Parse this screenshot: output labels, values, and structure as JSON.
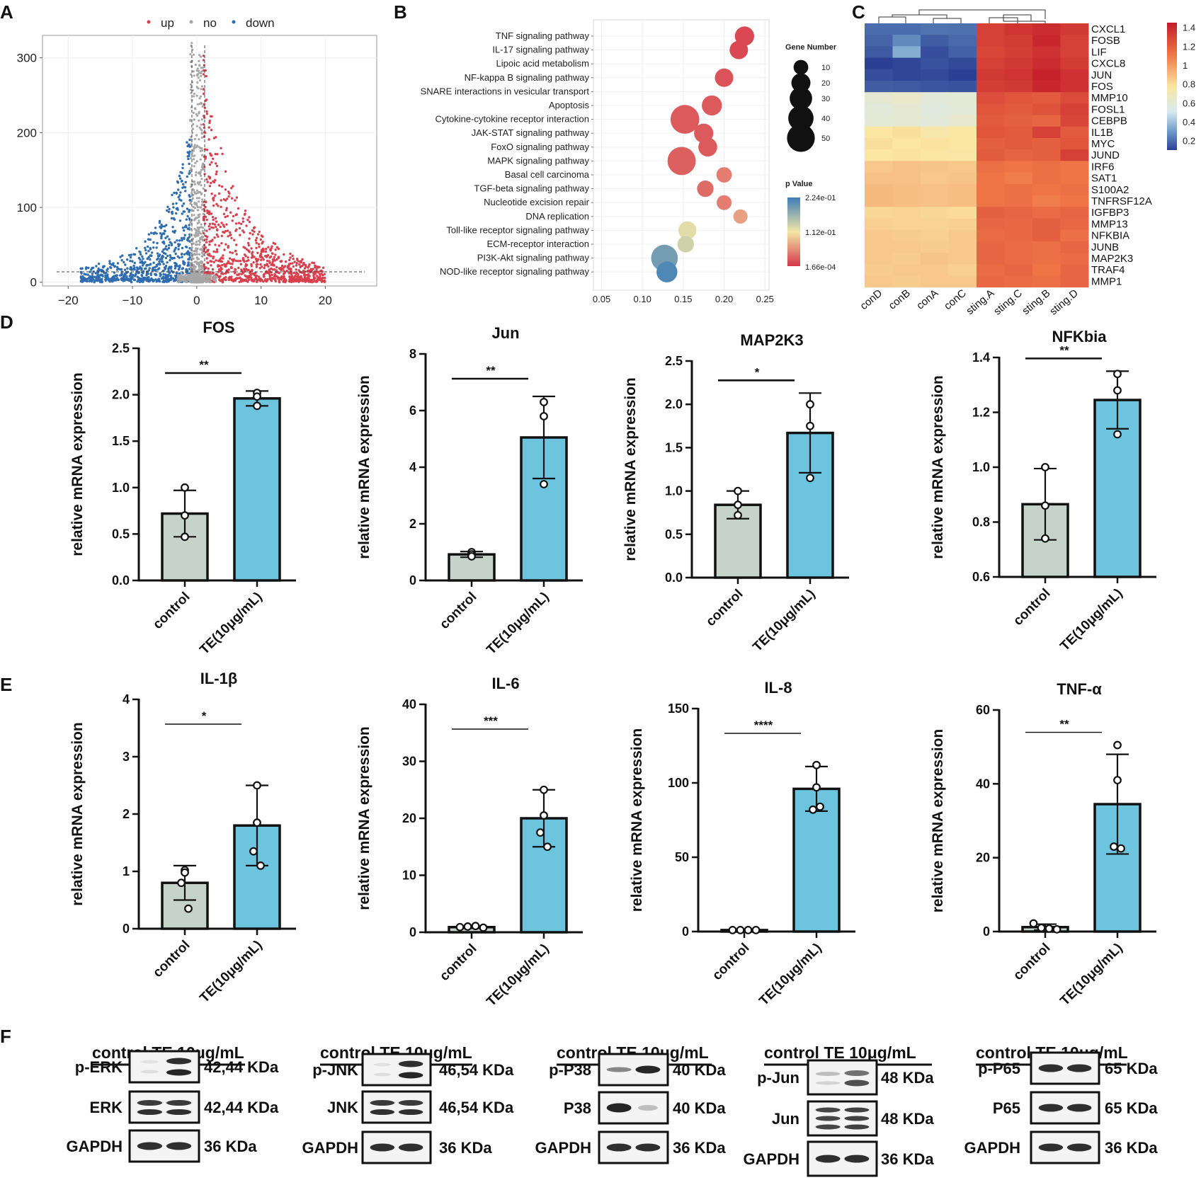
{
  "panels": {
    "a": "A",
    "b": "B",
    "c": "C",
    "d": "D",
    "e": "E",
    "f": "F"
  },
  "colors": {
    "up": "#d9404e",
    "no": "#a6a6a6",
    "down": "#2f6db0",
    "control_bar": "#c5d3cb",
    "te_bar": "#6cc4de",
    "heat_low": "#2b3f93",
    "heat_mid": "#fbf0b6",
    "heat_high": "#c21a2a"
  },
  "chart_data": [
    {
      "id": "volcano",
      "type": "scatter",
      "panel": "A",
      "legend": [
        "up",
        "no",
        "down"
      ],
      "legend_placement": "top",
      "x_ticks": [
        "-20",
        "-10",
        "0",
        "10",
        "20"
      ],
      "y_ticks": [
        "0",
        "100",
        "200",
        "300"
      ],
      "xlim": [
        -24,
        28
      ],
      "ylim": [
        -5,
        330
      ],
      "fc_threshold": [
        -1,
        1
      ],
      "groups": {
        "up": {
          "x_range": [
            1,
            20
          ],
          "y_peak": 290
        },
        "down": {
          "x_range": [
            -18,
            -1
          ],
          "y_peak": 190
        },
        "no": {
          "x_range": [
            -1,
            1
          ],
          "y_peak": 320
        }
      }
    },
    {
      "id": "kegg",
      "type": "scatter",
      "panel": "B",
      "pathways": [
        "TNF signaling pathway",
        "IL-17 signaling pathway",
        "Lipoic acid metabolism",
        "NF-kappa B signaling pathway",
        "SNARE interactions in vesicular transport",
        "Apoptosis",
        "Cytokine-cytokine receptor interaction",
        "JAK-STAT signaling pathway",
        "FoxO signaling pathway",
        "MAPK signaling pathway",
        "Basal cell carcinoma",
        "TGF-beta signaling pathway",
        "Nucleotide excision repair",
        "DNA replication",
        "Toll-like receptor signaling pathway",
        "ECM-receptor interaction",
        "PI3K-Akt signaling pathway",
        "NOD-like receptor signaling pathway"
      ],
      "rich_factor": [
        0.225,
        0.218,
        null,
        0.2,
        null,
        0.185,
        0.152,
        0.175,
        0.18,
        0.148,
        0.2,
        0.177,
        0.2,
        0.22,
        0.155,
        0.153,
        0.127,
        0.13
      ],
      "gene_number": [
        18,
        16,
        null,
        16,
        null,
        20,
        48,
        18,
        17,
        46,
        10,
        12,
        9,
        8,
        15,
        12,
        40,
        22
      ],
      "p_value_norm": [
        0.05,
        0.05,
        null,
        0.08,
        null,
        0.1,
        0.1,
        0.1,
        0.1,
        0.12,
        0.2,
        0.15,
        0.2,
        0.3,
        0.55,
        0.6,
        0.85,
        0.95
      ],
      "x_ticks": [
        "0.05",
        "0.10",
        "0.15",
        "0.20",
        "0.25"
      ],
      "xlim": [
        0.04,
        0.255
      ],
      "size_legend_title": "Gene Number",
      "size_legend": [
        "10",
        "20",
        "30",
        "40",
        "50"
      ],
      "color_legend_title": "p Value",
      "color_legend": [
        "2.24e-01",
        "1.12e-01",
        "1.66e-04"
      ]
    },
    {
      "id": "heatmap",
      "type": "heatmap",
      "panel": "C",
      "columns": [
        "conD",
        "conB",
        "conA",
        "conC",
        "sting.A",
        "sting.C",
        "sting.B",
        "sting.D"
      ],
      "genes": [
        "CXCL1",
        "FOSB",
        "LIF",
        "CXCL8",
        "JUN",
        "FOS",
        "MMP10",
        "FOSL1",
        "CEBPB",
        "IL1B",
        "MYC",
        "JUND",
        "IRF6",
        "SAT1",
        "S100A2",
        "TNFRSF12A",
        "IGFBP3",
        "MMP13",
        "NFKBIA",
        "JUNB",
        "MAP2K3",
        "TRAF4",
        "MMP1"
      ],
      "values": [
        [
          0.22,
          0.22,
          0.24,
          0.23,
          1.3,
          1.35,
          1.38,
          1.33
        ],
        [
          0.2,
          0.3,
          0.18,
          0.21,
          1.3,
          1.32,
          1.4,
          1.3
        ],
        [
          0.17,
          0.4,
          0.14,
          0.19,
          1.28,
          1.31,
          1.36,
          1.3
        ],
        [
          0.1,
          0.12,
          0.15,
          0.13,
          1.3,
          1.33,
          1.38,
          1.32
        ],
        [
          0.14,
          0.12,
          0.13,
          0.08,
          1.33,
          1.35,
          1.42,
          1.36
        ],
        [
          0.18,
          0.17,
          0.16,
          0.15,
          1.31,
          1.33,
          1.4,
          1.36
        ],
        [
          0.68,
          0.7,
          0.66,
          0.67,
          1.25,
          1.22,
          1.2,
          1.26
        ],
        [
          0.66,
          0.68,
          0.65,
          0.66,
          1.22,
          1.2,
          1.23,
          1.3
        ],
        [
          0.67,
          0.68,
          0.66,
          0.69,
          1.2,
          1.18,
          1.16,
          1.28
        ],
        [
          0.8,
          0.82,
          0.78,
          0.8,
          1.22,
          1.2,
          1.3,
          1.2
        ],
        [
          0.82,
          0.8,
          0.81,
          0.8,
          1.18,
          1.2,
          1.18,
          1.22
        ],
        [
          0.8,
          0.81,
          0.8,
          0.79,
          1.2,
          1.17,
          1.18,
          1.3
        ],
        [
          0.88,
          0.9,
          0.89,
          0.88,
          1.12,
          1.1,
          1.12,
          1.1
        ],
        [
          0.9,
          0.9,
          0.88,
          0.89,
          1.1,
          1.08,
          1.12,
          1.1
        ],
        [
          0.92,
          0.91,
          0.9,
          0.91,
          1.1,
          1.12,
          1.1,
          1.12
        ],
        [
          0.92,
          0.91,
          0.9,
          0.91,
          1.1,
          1.12,
          1.08,
          1.1
        ],
        [
          0.84,
          0.85,
          0.84,
          0.83,
          1.18,
          1.16,
          1.14,
          1.16
        ],
        [
          0.86,
          0.85,
          0.85,
          0.86,
          1.16,
          1.15,
          1.18,
          1.15
        ],
        [
          0.88,
          0.87,
          0.86,
          0.88,
          1.14,
          1.15,
          1.18,
          1.12
        ],
        [
          0.88,
          0.88,
          0.87,
          0.88,
          1.16,
          1.14,
          1.12,
          1.16
        ],
        [
          0.88,
          0.87,
          0.89,
          0.88,
          1.16,
          1.14,
          1.12,
          1.14
        ],
        [
          0.87,
          0.88,
          0.88,
          0.86,
          1.14,
          1.16,
          1.1,
          1.16
        ],
        [
          0.88,
          0.87,
          0.88,
          0.88,
          1.15,
          1.14,
          1.12,
          1.16
        ]
      ],
      "color_ticks": [
        "1.4",
        "1.2",
        "1",
        "0.8",
        "0.6",
        "0.4",
        "0.2"
      ],
      "color_range": [
        0.1,
        1.45
      ]
    },
    {
      "id": "fos",
      "type": "bar",
      "panel": "D",
      "title": "FOS",
      "ylabel": "relative mRNA expression",
      "categories": [
        "control",
        "TE(10μg/mL)"
      ],
      "values": [
        0.72,
        1.96
      ],
      "error": [
        0.25,
        0.08
      ],
      "points": [
        [
          1.0,
          0.7,
          0.47
        ],
        [
          2.02,
          1.98,
          1.88
        ]
      ],
      "ylim": [
        0,
        2.5
      ],
      "yticks": [
        "0.0",
        "0.5",
        "1.0",
        "1.5",
        "2.0",
        "2.5"
      ],
      "significance": "**"
    },
    {
      "id": "jun",
      "type": "bar",
      "panel": "D",
      "title": "Jun",
      "ylabel": "relative mRNA expression",
      "categories": [
        "control",
        "TE(10μg/mL)"
      ],
      "values": [
        0.92,
        5.05
      ],
      "error": [
        0.1,
        1.45
      ],
      "points": [
        [
          1.0,
          0.92,
          0.85
        ],
        [
          6.3,
          5.8,
          3.4
        ]
      ],
      "ylim": [
        0,
        8
      ],
      "yticks": [
        "0",
        "2",
        "4",
        "6",
        "8"
      ],
      "significance": "**"
    },
    {
      "id": "map2k3",
      "type": "bar",
      "panel": "D",
      "title": "MAP2K3",
      "ylabel": "relative mRNA expression",
      "categories": [
        "control",
        "TE(10μg/mL)"
      ],
      "values": [
        0.84,
        1.67
      ],
      "error": [
        0.16,
        0.46
      ],
      "points": [
        [
          1.0,
          0.84,
          0.72
        ],
        [
          2.0,
          1.75,
          1.15
        ]
      ],
      "ylim": [
        0,
        2.5
      ],
      "yticks": [
        "0.0",
        "0.5",
        "1.0",
        "1.5",
        "2.0",
        "2.5"
      ],
      "significance": "*"
    },
    {
      "id": "nfkbia",
      "type": "bar",
      "panel": "D",
      "title": "NFKbia",
      "ylabel": "relative mRNA expression",
      "categories": [
        "control",
        "TE(10μg/mL)"
      ],
      "values": [
        0.865,
        1.245
      ],
      "error": [
        0.13,
        0.105
      ],
      "points": [
        [
          1.0,
          0.86,
          0.74
        ],
        [
          1.34,
          1.28,
          1.12
        ]
      ],
      "ylim": [
        0.6,
        1.4
      ],
      "yticks": [
        "0.6",
        "0.8",
        "1.0",
        "1.2",
        "1.4"
      ],
      "significance": "**"
    },
    {
      "id": "il1b",
      "type": "bar",
      "panel": "E",
      "title": "IL-1β",
      "ylabel": "relative mRNA expression",
      "categories": [
        "control",
        "TE(10μg/mL)"
      ],
      "values": [
        0.8,
        1.8
      ],
      "error": [
        0.3,
        0.7
      ],
      "points": [
        [
          1.02,
          0.98,
          0.8,
          0.35
        ],
        [
          2.5,
          1.85,
          1.35,
          1.1
        ]
      ],
      "ylim": [
        0,
        4
      ],
      "yticks": [
        "0",
        "1",
        "2",
        "3",
        "4"
      ],
      "significance": "*"
    },
    {
      "id": "il6",
      "type": "bar",
      "panel": "E",
      "title": "IL-6",
      "ylabel": "relative mRNA expression",
      "categories": [
        "control",
        "TE(10μg/mL)"
      ],
      "values": [
        0.9,
        20
      ],
      "error": [
        0.2,
        5
      ],
      "points": [
        [
          0.9,
          1.0,
          1.1,
          0.8
        ],
        [
          25,
          20.5,
          17.5,
          15.0
        ]
      ],
      "ylim": [
        0,
        40
      ],
      "yticks": [
        "0",
        "10",
        "20",
        "30",
        "40"
      ],
      "significance": "***"
    },
    {
      "id": "il8",
      "type": "bar",
      "panel": "E",
      "title": "IL-8",
      "ylabel": "relative mRNA expression",
      "categories": [
        "control",
        "TE(10μg/mL)"
      ],
      "values": [
        1.0,
        96
      ],
      "error": [
        0.3,
        15
      ],
      "points": [
        [
          1.0,
          1.0,
          1.0,
          1.0
        ],
        [
          112,
          97,
          82,
          84
        ]
      ],
      "ylim": [
        0,
        150
      ],
      "yticks": [
        "0",
        "50",
        "100",
        "150"
      ],
      "significance": "****"
    },
    {
      "id": "tnfa",
      "type": "bar",
      "panel": "E",
      "title": "TNF-α",
      "ylabel": "relative mRNA expression",
      "categories": [
        "control",
        "TE(10μg/mL)"
      ],
      "values": [
        1.2,
        34.5
      ],
      "error": [
        0.8,
        13.5
      ],
      "points": [
        [
          2.2,
          1.0,
          0.8,
          0.6
        ],
        [
          50.5,
          41,
          23,
          22.5
        ]
      ],
      "ylim": [
        0,
        60
      ],
      "yticks": [
        "0",
        "20",
        "40",
        "60"
      ],
      "significance": "**"
    }
  ],
  "western_blots": [
    {
      "header": "control TE  10μg/mL",
      "rows": [
        {
          "protein": "p-ERK",
          "size": "42,44 KDa",
          "pattern": "te_only_double"
        },
        {
          "protein": "ERK",
          "size": "42,44 KDa",
          "pattern": "equal_double"
        },
        {
          "protein": "GAPDH",
          "size": "36 KDa",
          "pattern": "equal"
        }
      ]
    },
    {
      "header": "control TE  10μg/mL",
      "rows": [
        {
          "protein": "p-JNK",
          "size": "46,54 KDa",
          "pattern": "te_only_double"
        },
        {
          "protein": "JNK",
          "size": "46,54 KDa",
          "pattern": "equal_double"
        },
        {
          "protein": "GAPDH",
          "size": "36 KDa",
          "pattern": "equal"
        }
      ]
    },
    {
      "header": "control TE  10μg/mL",
      "rows": [
        {
          "protein": "p-P38",
          "size": "40 KDa",
          "pattern": "te_stronger"
        },
        {
          "protein": "P38",
          "size": "40 KDa",
          "pattern": "control_stronger"
        },
        {
          "protein": "GAPDH",
          "size": "36 KDa",
          "pattern": "equal"
        }
      ]
    },
    {
      "header": "control TE  10μg/mL",
      "rows": [
        {
          "protein": "p-Jun",
          "size": "48 KDa",
          "pattern": "te_stronger_double"
        },
        {
          "protein": "Jun",
          "size": "48 KDa",
          "pattern": "equal_triple"
        },
        {
          "protein": "GAPDH",
          "size": "36 KDa",
          "pattern": "equal"
        }
      ]
    },
    {
      "header": "control TE  10μg/mL",
      "rows": [
        {
          "protein": "p-P65",
          "size": "65 KDa",
          "pattern": "equal"
        },
        {
          "protein": "P65",
          "size": "65 KDa",
          "pattern": "equal"
        },
        {
          "protein": "GAPDH",
          "size": "36 KDa",
          "pattern": "equal"
        }
      ]
    }
  ]
}
